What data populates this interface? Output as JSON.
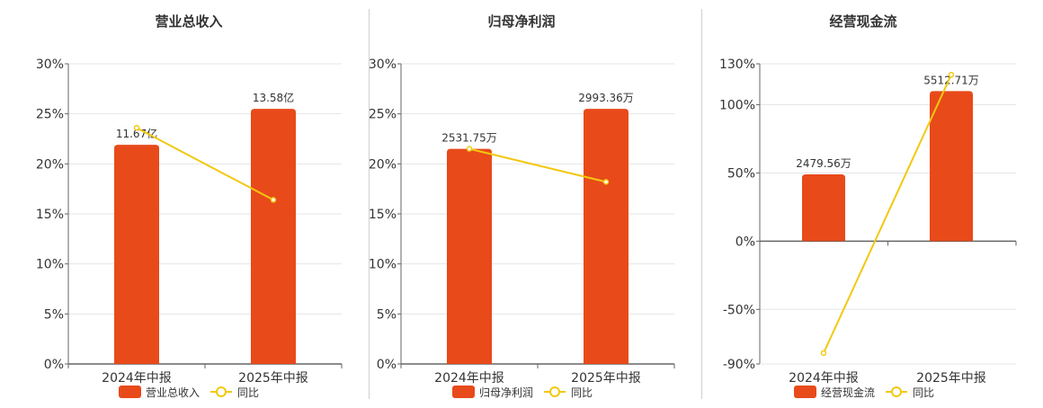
{
  "colors": {
    "bar": "#E84A1A",
    "line": "#F2C811",
    "grid": "#e6e6e6",
    "axis": "#666666",
    "text": "#333333"
  },
  "chart_data": [
    {
      "type": "bar",
      "title": "营业总收入",
      "categories": [
        "2024年中报",
        "2025年中报"
      ],
      "series": [
        {
          "name": "营业总收入",
          "type": "bar",
          "values": [
            21.9,
            25.5
          ],
          "labels": [
            "11.67亿",
            "13.58亿"
          ]
        },
        {
          "name": "同比",
          "type": "line",
          "values": [
            23.6,
            16.4
          ]
        }
      ],
      "ylim": [
        0,
        30
      ],
      "yticks": [
        0,
        5,
        10,
        15,
        20,
        25,
        30
      ],
      "ytick_labels": [
        "0%",
        "5%",
        "10%",
        "15%",
        "20%",
        "25%",
        "30%"
      ],
      "grid": true,
      "legend": "bottom"
    },
    {
      "type": "bar",
      "title": "归母净利润",
      "categories": [
        "2024年中报",
        "2025年中报"
      ],
      "series": [
        {
          "name": "归母净利润",
          "type": "bar",
          "values": [
            21.5,
            25.5
          ],
          "labels": [
            "2531.75万",
            "2993.36万"
          ]
        },
        {
          "name": "同比",
          "type": "line",
          "values": [
            21.5,
            18.2
          ]
        }
      ],
      "ylim": [
        0,
        30
      ],
      "yticks": [
        0,
        5,
        10,
        15,
        20,
        25,
        30
      ],
      "ytick_labels": [
        "0%",
        "5%",
        "10%",
        "15%",
        "20%",
        "25%",
        "30%"
      ],
      "grid": true,
      "legend": "bottom"
    },
    {
      "type": "bar",
      "title": "经营现金流",
      "categories": [
        "2024年中报",
        "2025年中报"
      ],
      "series": [
        {
          "name": "经营现金流",
          "type": "bar",
          "values": [
            49,
            110
          ],
          "labels": [
            "2479.56万",
            "5512.71万"
          ]
        },
        {
          "name": "同比",
          "type": "line",
          "values": [
            -82,
            122
          ]
        }
      ],
      "ylim": [
        -90,
        130
      ],
      "yticks": [
        -90,
        -50,
        0,
        50,
        100,
        130
      ],
      "ytick_labels": [
        "-90%",
        "-50%",
        "0%",
        "50%",
        "100%",
        "130%"
      ],
      "grid": true,
      "legend": "bottom"
    }
  ]
}
